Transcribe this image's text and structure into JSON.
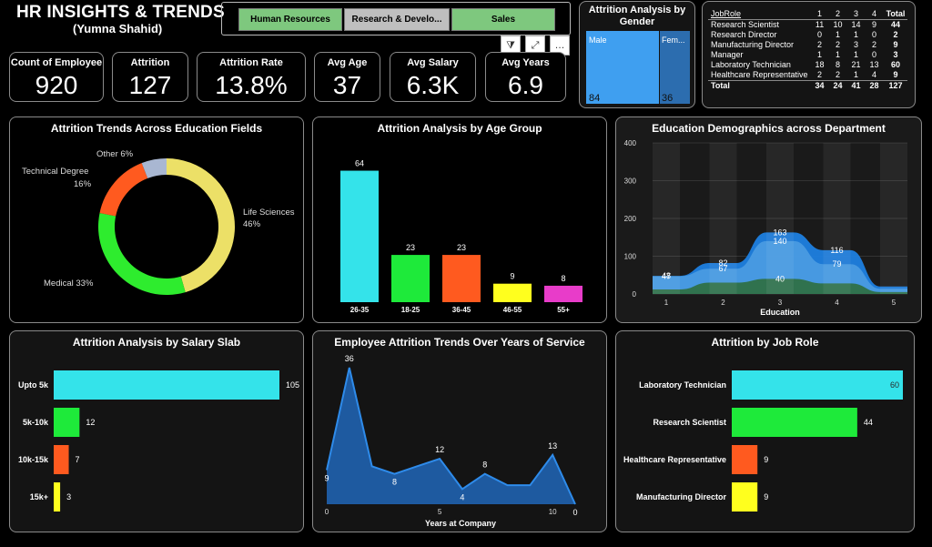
{
  "header": {
    "title": "HR INSIGHTS & TRENDS",
    "subtitle": "(Yumna Shahid)"
  },
  "slicer": {
    "items": [
      "Human Resources",
      "Research & Develo...",
      "Sales"
    ]
  },
  "toolbar": {
    "filter": "⧩",
    "focus": "⤢",
    "more": "…"
  },
  "kpis": [
    {
      "label": "Count of Employee",
      "value": "920"
    },
    {
      "label": "Attrition",
      "value": "127"
    },
    {
      "label": "Attrition Rate",
      "value": "13.8%"
    },
    {
      "label": "Avg Age",
      "value": "37"
    },
    {
      "label": "Avg Salary",
      "value": "6.3K"
    },
    {
      "label": "Avg Years",
      "value": "6.9"
    }
  ],
  "gender": {
    "title": "Attrition Analysis by Gender",
    "male_label": "Male",
    "male_value": "84",
    "female_label": "Fem...",
    "female_value": "36"
  },
  "role_table": {
    "header": [
      "JobRole",
      "1",
      "2",
      "3",
      "4",
      "Total"
    ],
    "rows": [
      [
        "Research Scientist",
        "11",
        "10",
        "14",
        "9",
        "44"
      ],
      [
        "Research Director",
        "0",
        "1",
        "1",
        "0",
        "2"
      ],
      [
        "Manufacturing Director",
        "2",
        "2",
        "3",
        "2",
        "9"
      ],
      [
        "Manager",
        "1",
        "1",
        "1",
        "0",
        "3"
      ],
      [
        "Laboratory Technician",
        "18",
        "8",
        "21",
        "13",
        "60"
      ],
      [
        "Healthcare Representative",
        "2",
        "2",
        "1",
        "4",
        "9"
      ]
    ],
    "total": [
      "Total",
      "34",
      "24",
      "41",
      "28",
      "127"
    ]
  },
  "chart_data": [
    {
      "id": "edu_donut",
      "type": "pie",
      "title": "Attrition Trends Across Education Fields",
      "slices": [
        {
          "label": "Life Sciences",
          "value": 46,
          "pct": "46%",
          "color": "#ECE067"
        },
        {
          "label": "Medical",
          "value": 33,
          "pct": "33%",
          "color": "#2EEC2E"
        },
        {
          "label": "Technical Degree",
          "value": 16,
          "pct": "16%",
          "color": "#FF5A1F"
        },
        {
          "label": "Other",
          "value": 6,
          "pct": "6%",
          "color": "#A9B7D2"
        }
      ],
      "display": [
        "Life Sciences",
        "46%",
        "Medical 33%",
        "Technical Degree",
        "16%",
        "Other 6%"
      ]
    },
    {
      "id": "age_bar",
      "type": "bar",
      "title": "Attrition Analysis by Age Group",
      "categories": [
        "26-35",
        "18-25",
        "36-45",
        "46-55",
        "55+"
      ],
      "values": [
        64,
        23,
        23,
        9,
        8
      ],
      "labels": [
        "64",
        "23",
        "23",
        "9",
        "8"
      ],
      "colors": [
        "#34E3EA",
        "#1EEA3A",
        "#FF5A1F",
        "#FFFF1E",
        "#E83CC9"
      ],
      "ylim": [
        0,
        70
      ]
    },
    {
      "id": "edu_dept",
      "type": "area",
      "title": "Education Demographics across Department",
      "xlabel": "Education",
      "x": [
        1,
        2,
        3,
        4,
        5
      ],
      "xticks": [
        "1",
        "2",
        "3",
        "4",
        "5"
      ],
      "yticks": [
        "0",
        "100",
        "200",
        "300",
        "400"
      ],
      "ylim": [
        0,
        400
      ],
      "series": [
        {
          "name": "Total",
          "values": [
            48,
            82,
            163,
            116,
            20
          ],
          "color": "#1D7FE0"
        },
        {
          "name": "Research & Development",
          "values": [
            47,
            67,
            140,
            79,
            14
          ],
          "color": "#5AA6E6"
        },
        {
          "name": "Human Resources",
          "values": [
            12,
            30,
            40,
            28,
            5
          ],
          "color": "#2E6E3E"
        }
      ],
      "labels": [
        {
          "x": 1,
          "y": 48,
          "text": "48"
        },
        {
          "x": 1,
          "y": 47,
          "text": "47"
        },
        {
          "x": 2,
          "y": 82,
          "text": "82"
        },
        {
          "x": 2,
          "y": 67,
          "text": "67"
        },
        {
          "x": 3,
          "y": 163,
          "text": "163"
        },
        {
          "x": 3,
          "y": 140,
          "text": "140"
        },
        {
          "x": 3,
          "y": 40,
          "text": "40"
        },
        {
          "x": 4,
          "y": 116,
          "text": "116"
        },
        {
          "x": 4,
          "y": 79,
          "text": "79"
        }
      ]
    },
    {
      "id": "salary_bar",
      "type": "bar",
      "title": "Attrition Analysis by Salary Slab",
      "categories": [
        "Upto 5k",
        "5k-10k",
        "10k-15k",
        "15k+"
      ],
      "values": [
        105,
        12,
        7,
        3
      ],
      "labels": [
        "105",
        "12",
        "7",
        "3"
      ],
      "colors": [
        "#34E3EA",
        "#1EEA3A",
        "#FF5A1F",
        "#FFFF1E"
      ],
      "xlim": [
        0,
        105
      ]
    },
    {
      "id": "years_area",
      "type": "area",
      "title": "Employee Attrition Trends Over Years of Service",
      "xlabel": "Years at Company",
      "xticks": [
        "0",
        "5",
        "10"
      ],
      "x": [
        0,
        1,
        2,
        3,
        4,
        5,
        6,
        7,
        8,
        9,
        10,
        11
      ],
      "values": [
        9,
        36,
        10,
        8,
        10,
        12,
        4,
        8,
        5,
        5,
        13,
        0
      ],
      "point_labels": [
        {
          "i": 0,
          "text": "9"
        },
        {
          "i": 1,
          "text": "36"
        },
        {
          "i": 3,
          "text": "8"
        },
        {
          "i": 5,
          "text": "12"
        },
        {
          "i": 6,
          "text": "4"
        },
        {
          "i": 7,
          "text": "8"
        },
        {
          "i": 10,
          "text": "13"
        },
        {
          "i": 11,
          "text": "0"
        }
      ],
      "ylim": [
        0,
        36
      ],
      "color": "#1E5AA0",
      "line_color": "#2E8BEA"
    },
    {
      "id": "role_bar",
      "type": "bar",
      "title": "Attrition by Job Role",
      "categories": [
        "Laboratory Technician",
        "Research Scientist",
        "Healthcare Representative",
        "Manufacturing Director"
      ],
      "values": [
        60,
        44,
        9,
        9
      ],
      "labels": [
        "60",
        "44",
        "9",
        "9"
      ],
      "colors": [
        "#34E3EA",
        "#1EEA3A",
        "#FF5A1F",
        "#FFFF1E"
      ],
      "xlim": [
        0,
        60
      ]
    }
  ]
}
